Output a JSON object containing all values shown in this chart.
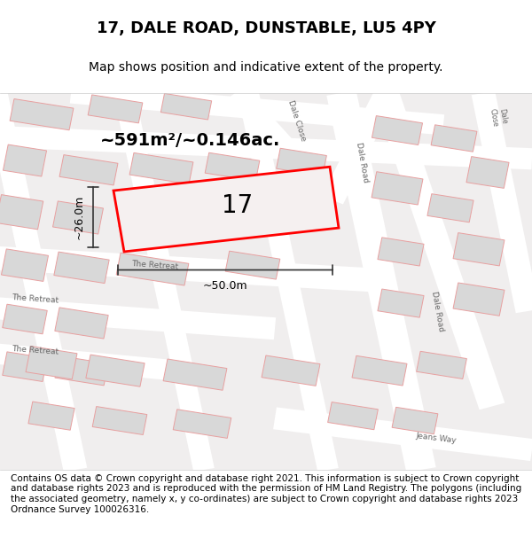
{
  "title": "17, DALE ROAD, DUNSTABLE, LU5 4PY",
  "subtitle": "Map shows position and indicative extent of the property.",
  "footer": "Contains OS data © Crown copyright and database right 2021. This information is subject to Crown copyright and database rights 2023 and is reproduced with the permission of HM Land Registry. The polygons (including the associated geometry, namely x, y co-ordinates) are subject to Crown copyright and database rights 2023 Ordnance Survey 100026316.",
  "area_text": "~591m²/~0.146ac.",
  "label_17": "17",
  "dim_width": "~50.0m",
  "dim_height": "~26.0m",
  "map_bg": "#f0eeee",
  "road_color": "#ffffff",
  "building_fill": "#d8d8d8",
  "building_outline": "#e8a0a0",
  "highlight_fill": "#f5f0f0",
  "highlight_outline": "#ff0000",
  "dim_color": "#333333",
  "title_fontsize": 13,
  "subtitle_fontsize": 10,
  "footer_fontsize": 7.5,
  "road_label_fontsize": 6.5,
  "road_label_color": "#666666"
}
